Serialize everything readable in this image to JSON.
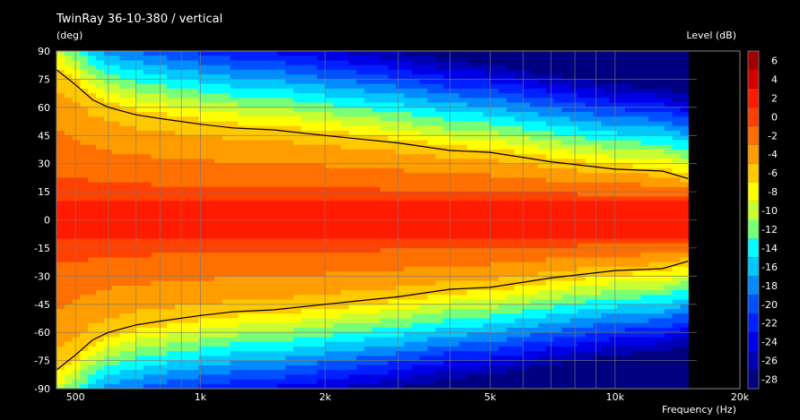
{
  "chart_data": {
    "type": "heatmap",
    "title": "TwinRay 36-10-380 / vertical",
    "ylabel": "(deg)",
    "xlabel": "Frequency  (Hz)",
    "colorbar_label": "Level  (dB)",
    "x_scale": "log",
    "xlim": [
      450,
      20000
    ],
    "ylim": [
      -90,
      90
    ],
    "data_x_max": 15000,
    "x_ticks": [
      500,
      1000,
      2000,
      5000,
      10000,
      20000
    ],
    "x_tick_labels": [
      "500",
      "1k",
      "2k",
      "5k",
      "10k",
      "20k"
    ],
    "y_ticks": [
      90,
      75,
      60,
      45,
      30,
      15,
      0,
      -15,
      -30,
      -45,
      -60,
      -75,
      -90
    ],
    "y_tick_labels": [
      "90",
      "75",
      "60",
      "45",
      "30",
      "15",
      "0",
      "-15",
      "-30",
      "-45",
      "-60",
      "-75",
      "-90"
    ],
    "colorbar": {
      "levels": [
        6,
        4,
        2,
        0,
        -2,
        -4,
        -6,
        -8,
        -10,
        -12,
        -14,
        -16,
        -18,
        -20,
        -22,
        -24,
        -26,
        -28
      ],
      "labels": [
        "6",
        "4",
        "2",
        "0",
        "-2",
        "-4",
        "-6",
        "-8",
        "-10",
        "-12",
        "-14",
        "-16",
        "-18",
        "-20",
        "-22",
        "-24",
        "-26",
        "-28"
      ],
      "colors": [
        "#a00000",
        "#d40000",
        "#ff1a00",
        "#ff4000",
        "#ff7000",
        "#ff9d00",
        "#ffc800",
        "#ffff00",
        "#c8ff32",
        "#78ff78",
        "#00ffff",
        "#00c8ff",
        "#008cff",
        "#0050ff",
        "#0020ff",
        "#0000e6",
        "#0000b4",
        "#000080"
      ],
      "range": [
        -29,
        7
      ]
    },
    "contour_levels_db": [
      -6
    ],
    "contour_minus6db": {
      "x": [
        450,
        500,
        550,
        600,
        700,
        800,
        1000,
        1200,
        1500,
        2000,
        3000,
        4000,
        5000,
        7000,
        10000,
        13000,
        15000
      ],
      "y": [
        80,
        72,
        64,
        60,
        56,
        54,
        51,
        49,
        48,
        45,
        41,
        37,
        36,
        31,
        27,
        26,
        22
      ]
    },
    "grid": true
  }
}
